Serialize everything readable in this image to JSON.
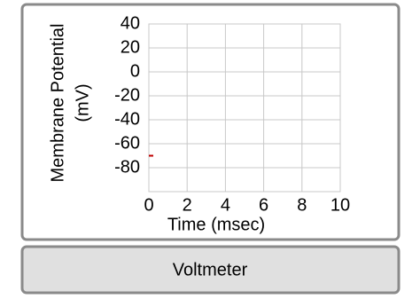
{
  "chart_data": {
    "type": "line",
    "xlabel": "Time (msec)",
    "ylabel": [
      "Membrane Potential",
      "(mV)"
    ],
    "x": [
      0
    ],
    "series": [
      {
        "color": "#c00000",
        "values": [
          -70
        ]
      }
    ],
    "xlim": [
      0,
      10
    ],
    "xticks": [
      0,
      2,
      4,
      6,
      8,
      10
    ],
    "ylim": [
      -100,
      40
    ],
    "yticks": [
      -80,
      -60,
      -40,
      -20,
      0,
      20,
      40
    ],
    "grid": true
  },
  "button": {
    "label": "Voltmeter"
  }
}
